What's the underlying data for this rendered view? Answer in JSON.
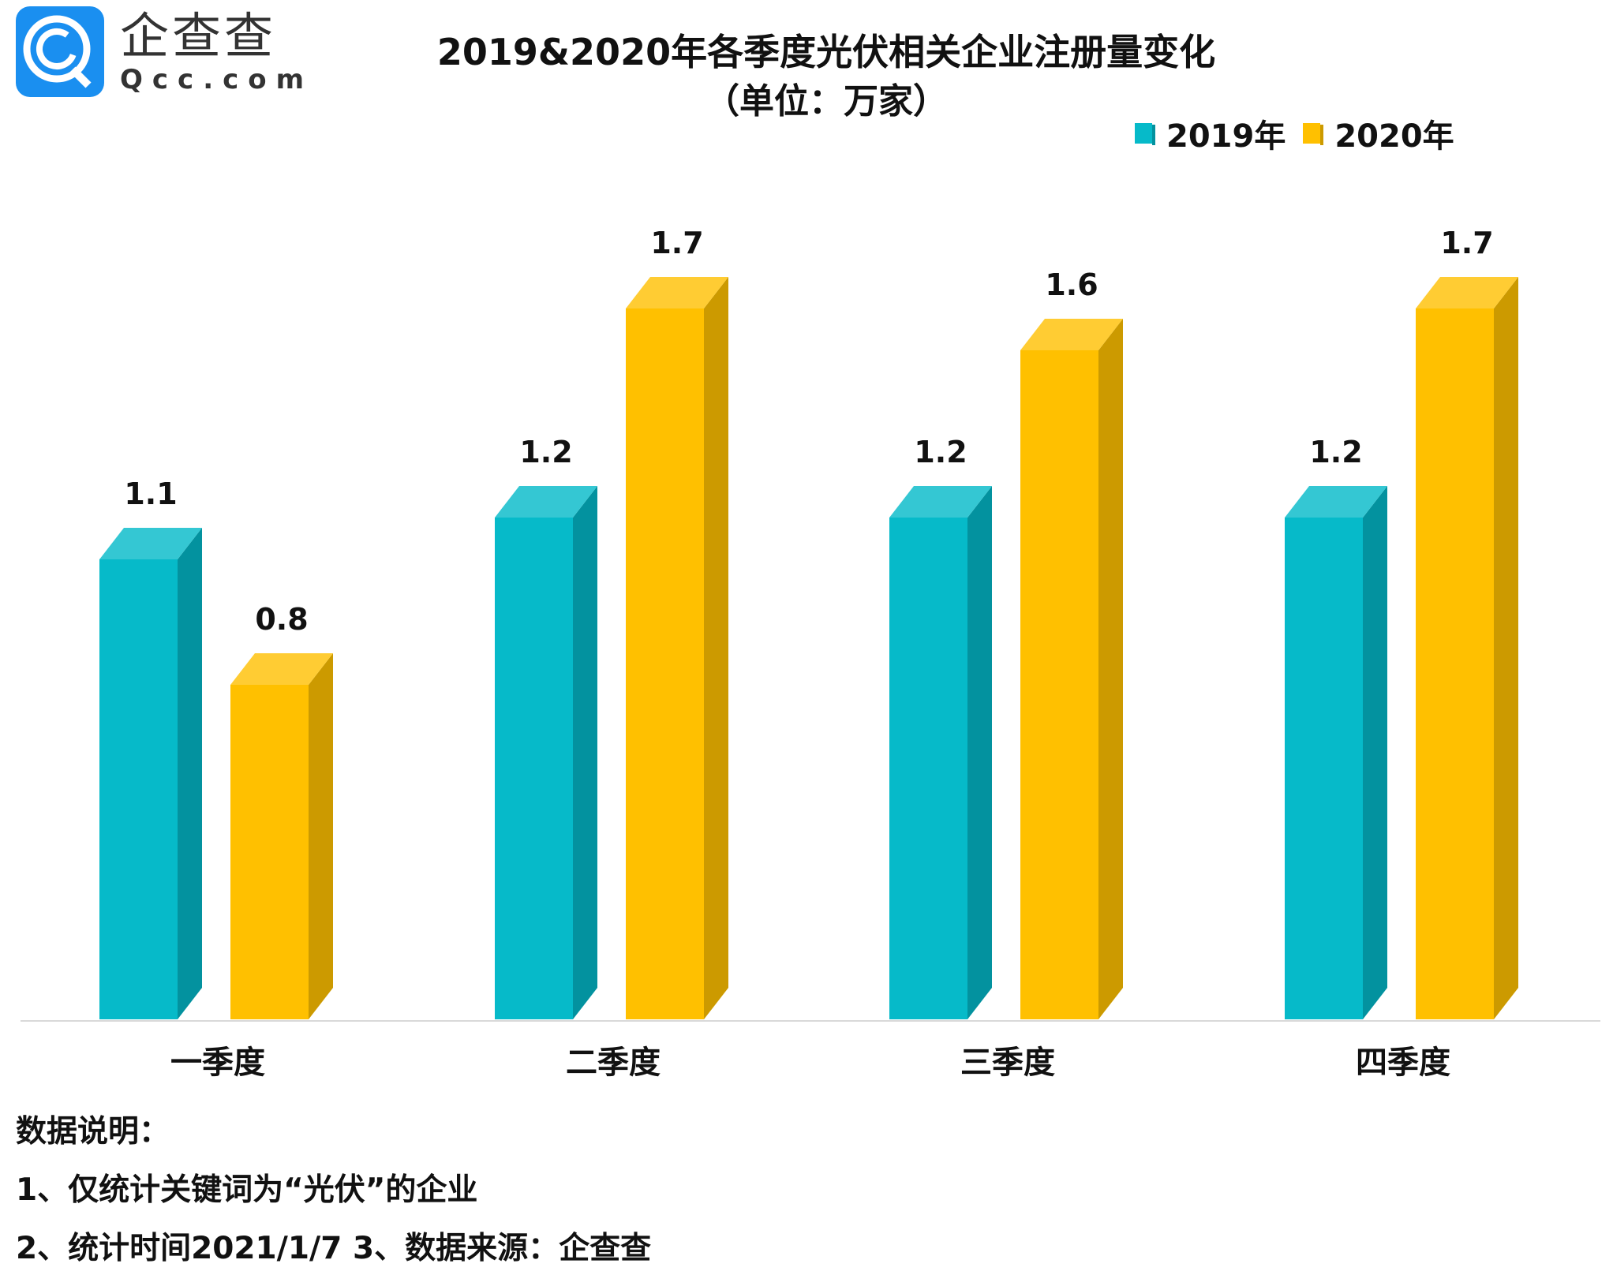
{
  "logo": {
    "cn": "企查查",
    "en": "Qcc.com"
  },
  "chart_data": {
    "type": "bar",
    "title": "2019&2020年各季度光伏相关企业注册量变化",
    "subtitle": "（单位：万家）",
    "categories": [
      "一季度",
      "二季度",
      "三季度",
      "四季度"
    ],
    "series": [
      {
        "name": "2019年",
        "values": [
          1.1,
          1.2,
          1.2,
          1.2
        ],
        "labels": [
          "1.1",
          "1.2",
          "1.2",
          "1.2"
        ],
        "color": "#06BAC9",
        "side": "#03929F",
        "top": "#34C7D3"
      },
      {
        "name": "2020年",
        "values": [
          0.8,
          1.7,
          1.6,
          1.7
        ],
        "labels": [
          "0.8",
          "1.7",
          "1.6",
          "1.7"
        ],
        "color": "#FFC000",
        "side": "#CC9A00",
        "top": "#FFCC33"
      }
    ],
    "legend": "top-right",
    "grid": false,
    "style": "3d-column"
  },
  "notes": {
    "heading": "数据说明：",
    "line1": "1、仅统计关键词为“光伏”的企业",
    "line2": "2、统计时间2021/1/7   3、数据来源：企查查"
  }
}
